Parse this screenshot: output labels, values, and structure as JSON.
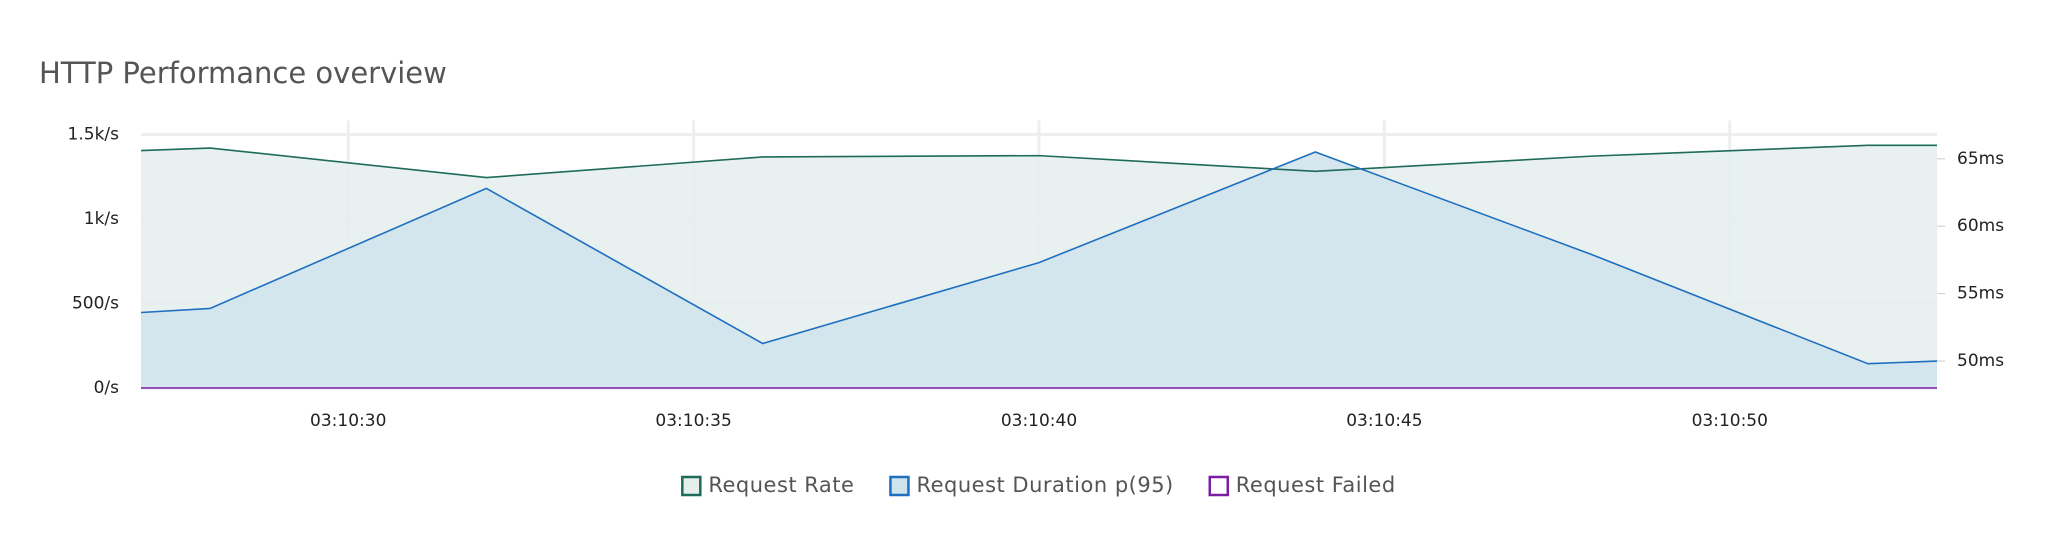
{
  "chart_data": {
    "type": "line",
    "title": "HTTP Performance overview",
    "x": [
      "03:10:27",
      "03:10:28",
      "03:10:32",
      "03:10:36",
      "03:10:40",
      "03:10:44",
      "03:10:48",
      "03:10:52",
      "03:10:53"
    ],
    "xlim": [
      "03:10:27",
      "03:10:53"
    ],
    "xticks": [
      "03:10:30",
      "03:10:35",
      "03:10:40",
      "03:10:45",
      "03:10:50"
    ],
    "ylim": [
      0,
      1500
    ],
    "yticks": [
      {
        "value": 0,
        "label": "0/s"
      },
      {
        "value": 500,
        "label": "500/s"
      },
      {
        "value": 1000,
        "label": "1k/s"
      },
      {
        "value": 1500,
        "label": "1.5k/s"
      }
    ],
    "y2lim": [
      48,
      66.8
    ],
    "y2ticks": [
      {
        "value": 50,
        "label": "50ms"
      },
      {
        "value": 55,
        "label": "55ms"
      },
      {
        "value": 60,
        "label": "60ms"
      },
      {
        "value": 65,
        "label": "65ms"
      }
    ],
    "grid": true,
    "legend": "bottom",
    "series": [
      {
        "name": "Request Rate",
        "color": "#1e6b5a",
        "fill": "#e4efec",
        "values": [
          1405,
          1420,
          1245,
          1367,
          1375,
          1282,
          1372,
          1436,
          1436
        ]
      },
      {
        "name": "Request Duration p(95)",
        "color": "#1f6fc0",
        "fill": "#cfe3ec",
        "axis": "y2",
        "values": [
          53.6,
          53.9,
          62.8,
          51.3,
          57.3,
          65.5,
          57.9,
          49.8,
          50.0
        ]
      },
      {
        "name": "Request Failed",
        "color": "#7b1fa2",
        "values": [
          0,
          0,
          0,
          0,
          0,
          0,
          0,
          0,
          0
        ]
      }
    ]
  }
}
